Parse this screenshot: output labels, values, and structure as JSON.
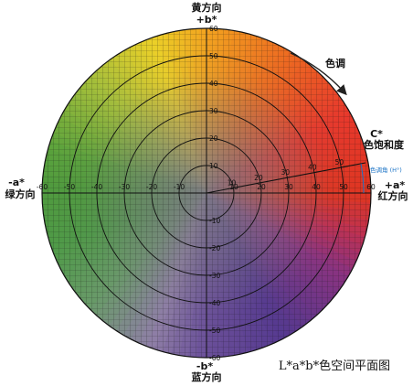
{
  "labels": {
    "yellow": "黄方向",
    "plus_b": "+b*",
    "minus_b": "-b*",
    "blue": "蓝方向",
    "minus_a": "-a*",
    "green": "绿方向",
    "plus_a": "+a*",
    "red": "红方向",
    "hue": "色调",
    "c_star": "C*",
    "chroma": "色饱和度",
    "hue_angle": "色调角 (H°)"
  },
  "caption": "L*a*b*色空间平面图",
  "axis": {
    "min": -60,
    "max": 60,
    "step": 10,
    "ring_values": [
      10,
      20,
      30,
      40,
      50,
      60
    ]
  },
  "chroma_vector_ticks": [
    "10",
    "20",
    "30",
    "40",
    "50"
  ],
  "hue_colors": [
    {
      "angle": 0,
      "color": "#e03520"
    },
    {
      "angle": 30,
      "color": "#e8382c"
    },
    {
      "angle": 60,
      "color": "#ee6a20"
    },
    {
      "angle": 90,
      "color": "#f3a21f"
    },
    {
      "angle": 110,
      "color": "#ecd127"
    },
    {
      "angle": 135,
      "color": "#a8c03a"
    },
    {
      "angle": 165,
      "color": "#5aa23c"
    },
    {
      "angle": 180,
      "color": "#4f9a3e"
    },
    {
      "angle": 200,
      "color": "#4f9a48"
    },
    {
      "angle": 225,
      "color": "#6a9a6a"
    },
    {
      "angle": 250,
      "color": "#8f7fa6"
    },
    {
      "angle": 270,
      "color": "#6a4f9a"
    },
    {
      "angle": 300,
      "color": "#55388f"
    },
    {
      "angle": 330,
      "color": "#8a3280"
    },
    {
      "angle": 345,
      "color": "#bc3054"
    },
    {
      "angle": 360,
      "color": "#e03520"
    }
  ]
}
